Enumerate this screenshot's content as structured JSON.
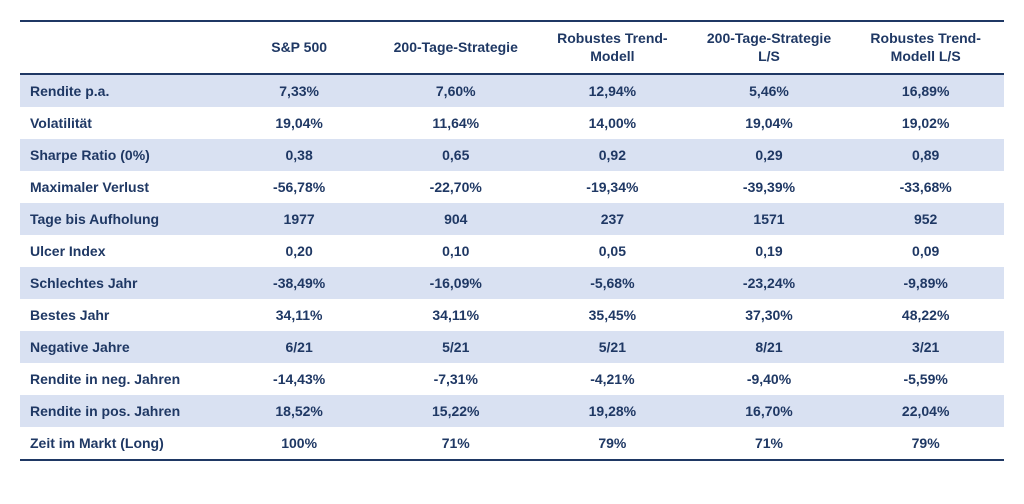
{
  "table": {
    "header_text_color": "#1f3864",
    "body_text_color": "#1f3864",
    "alt_row_bg": "#d9e1f2",
    "border_color": "#1f3864",
    "font_size": 14,
    "columns": [
      "",
      "S&P 500",
      "200-Tage-Strategie",
      "Robustes Trend-Modell",
      "200-Tage-Strategie L/S",
      "Robustes Trend-Modell L/S"
    ],
    "rows": [
      {
        "label": "Rendite p.a.",
        "c1": "7,33%",
        "c2": "7,60%",
        "c3": "12,94%",
        "c4": "5,46%",
        "c5": "16,89%"
      },
      {
        "label": "Volatilität",
        "c1": "19,04%",
        "c2": "11,64%",
        "c3": "14,00%",
        "c4": "19,04%",
        "c5": "19,02%"
      },
      {
        "label": "Sharpe Ratio (0%)",
        "c1": "0,38",
        "c2": "0,65",
        "c3": "0,92",
        "c4": "0,29",
        "c5": "0,89"
      },
      {
        "label": "Maximaler Verlust",
        "c1": "-56,78%",
        "c2": "-22,70%",
        "c3": "-19,34%",
        "c4": "-39,39%",
        "c5": "-33,68%"
      },
      {
        "label": "Tage bis Aufholung",
        "c1": "1977",
        "c2": "904",
        "c3": "237",
        "c4": "1571",
        "c5": "952"
      },
      {
        "label": "Ulcer Index",
        "c1": "0,20",
        "c2": "0,10",
        "c3": "0,05",
        "c4": "0,19",
        "c5": "0,09"
      },
      {
        "label": "Schlechtes Jahr",
        "c1": "-38,49%",
        "c2": "-16,09%",
        "c3": "-5,68%",
        "c4": "-23,24%",
        "c5": "-9,89%"
      },
      {
        "label": "Bestes Jahr",
        "c1": "34,11%",
        "c2": "34,11%",
        "c3": "35,45%",
        "c4": "37,30%",
        "c5": "48,22%"
      },
      {
        "label": "Negative Jahre",
        "c1": "6/21",
        "c2": "5/21",
        "c3": "5/21",
        "c4": "8/21",
        "c5": "3/21"
      },
      {
        "label": "Rendite in neg. Jahren",
        "c1": "-14,43%",
        "c2": "-7,31%",
        "c3": "-4,21%",
        "c4": "-9,40%",
        "c5": "-5,59%"
      },
      {
        "label": "Rendite in pos. Jahren",
        "c1": "18,52%",
        "c2": "15,22%",
        "c3": "19,28%",
        "c4": "16,70%",
        "c5": "22,04%"
      },
      {
        "label": "Zeit im Markt (Long)",
        "c1": "100%",
        "c2": "71%",
        "c3": "79%",
        "c4": "71%",
        "c5": "79%"
      }
    ]
  }
}
